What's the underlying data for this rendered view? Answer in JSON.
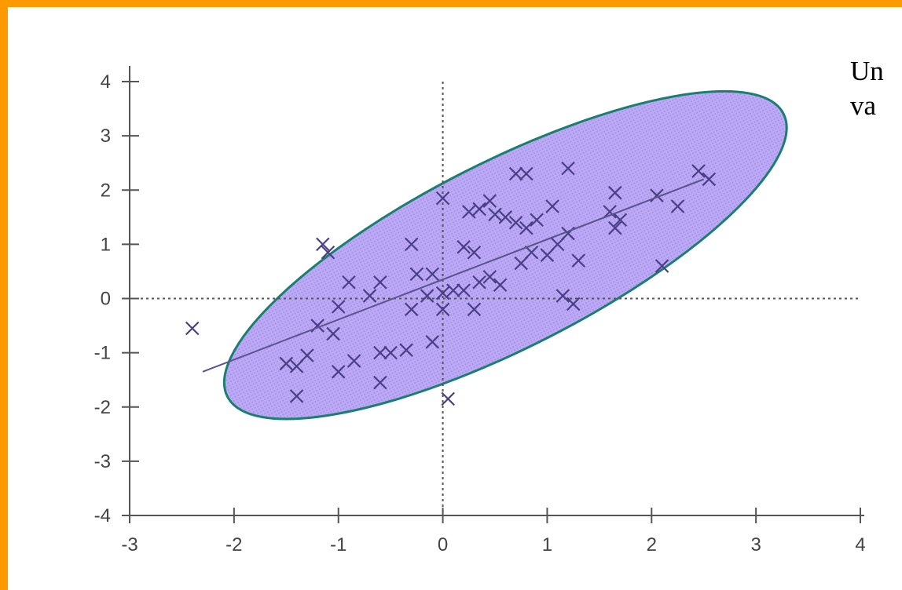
{
  "slide": {
    "border_color": "#ff9900",
    "caption_lines": [
      "Un",
      "va"
    ]
  },
  "chart_data": {
    "type": "scatter",
    "title": "",
    "xlabel": "",
    "ylabel": "",
    "xlim": [
      -3,
      4
    ],
    "ylim": [
      -4,
      4
    ],
    "x_ticks": [
      "-3",
      "-2",
      "-1",
      "0",
      "1",
      "2",
      "3",
      "4"
    ],
    "y_ticks": [
      "4",
      "3",
      "2",
      "1",
      "0",
      "-1",
      "-2",
      "-3",
      "-4"
    ],
    "grid": false,
    "reference_lines": {
      "x": 0,
      "y": 0,
      "style": "dotted"
    },
    "points": [
      {
        "x": -2.4,
        "y": -0.55
      },
      {
        "x": -1.5,
        "y": -1.2
      },
      {
        "x": -1.4,
        "y": -1.25
      },
      {
        "x": -1.3,
        "y": -1.05
      },
      {
        "x": -1.4,
        "y": -1.8
      },
      {
        "x": -1.15,
        "y": 1.0
      },
      {
        "x": -1.1,
        "y": 0.85
      },
      {
        "x": -1.2,
        "y": -0.5
      },
      {
        "x": -1.05,
        "y": -0.65
      },
      {
        "x": -1.0,
        "y": -0.15
      },
      {
        "x": -1.0,
        "y": -1.35
      },
      {
        "x": -0.9,
        "y": 0.3
      },
      {
        "x": -0.85,
        "y": -1.15
      },
      {
        "x": -0.7,
        "y": 0.05
      },
      {
        "x": -0.6,
        "y": 0.3
      },
      {
        "x": -0.6,
        "y": -1.0
      },
      {
        "x": -0.6,
        "y": -1.55
      },
      {
        "x": -0.5,
        "y": -1.0
      },
      {
        "x": -0.35,
        "y": -0.95
      },
      {
        "x": -0.3,
        "y": 1.0
      },
      {
        "x": -0.3,
        "y": -0.2
      },
      {
        "x": -0.25,
        "y": 0.45
      },
      {
        "x": -0.15,
        "y": 0.05
      },
      {
        "x": -0.1,
        "y": 0.45
      },
      {
        "x": -0.1,
        "y": -0.8
      },
      {
        "x": 0.0,
        "y": 1.85
      },
      {
        "x": 0.0,
        "y": 0.1
      },
      {
        "x": 0.0,
        "y": -0.2
      },
      {
        "x": 0.05,
        "y": -1.85
      },
      {
        "x": 0.1,
        "y": 0.15
      },
      {
        "x": 0.2,
        "y": 0.15
      },
      {
        "x": 0.2,
        "y": 0.95
      },
      {
        "x": 0.25,
        "y": 1.6
      },
      {
        "x": 0.3,
        "y": 0.85
      },
      {
        "x": 0.3,
        "y": -0.2
      },
      {
        "x": 0.35,
        "y": 1.65
      },
      {
        "x": 0.35,
        "y": 0.3
      },
      {
        "x": 0.45,
        "y": 0.4
      },
      {
        "x": 0.45,
        "y": 1.8
      },
      {
        "x": 0.5,
        "y": 1.55
      },
      {
        "x": 0.55,
        "y": 0.25
      },
      {
        "x": 0.6,
        "y": 1.5
      },
      {
        "x": 0.7,
        "y": 2.3
      },
      {
        "x": 0.7,
        "y": 1.4
      },
      {
        "x": 0.75,
        "y": 0.65
      },
      {
        "x": 0.8,
        "y": 2.3
      },
      {
        "x": 0.8,
        "y": 1.3
      },
      {
        "x": 0.85,
        "y": 0.85
      },
      {
        "x": 0.9,
        "y": 1.45
      },
      {
        "x": 1.0,
        "y": 0.8
      },
      {
        "x": 1.05,
        "y": 1.7
      },
      {
        "x": 1.1,
        "y": 1.0
      },
      {
        "x": 1.15,
        "y": 0.05
      },
      {
        "x": 1.2,
        "y": 1.2
      },
      {
        "x": 1.2,
        "y": 2.4
      },
      {
        "x": 1.25,
        "y": -0.1
      },
      {
        "x": 1.3,
        "y": 0.7
      },
      {
        "x": 1.6,
        "y": 1.6
      },
      {
        "x": 1.65,
        "y": 1.95
      },
      {
        "x": 1.65,
        "y": 1.3
      },
      {
        "x": 1.7,
        "y": 1.45
      },
      {
        "x": 2.05,
        "y": 1.9
      },
      {
        "x": 2.1,
        "y": 0.6
      },
      {
        "x": 2.25,
        "y": 1.7
      },
      {
        "x": 2.45,
        "y": 2.35
      },
      {
        "x": 2.55,
        "y": 2.2
      }
    ],
    "regression_line": {
      "x": [
        -2.3,
        2.5
      ],
      "y": [
        -1.35,
        2.2
      ]
    },
    "highlight_ellipse": {
      "fill": "#b8a6f2",
      "stroke": "#1a7f6e",
      "center": [
        0.6,
        0.8
      ],
      "rx": 3.05,
      "ry": 1.8,
      "rotation_deg": -27
    }
  }
}
